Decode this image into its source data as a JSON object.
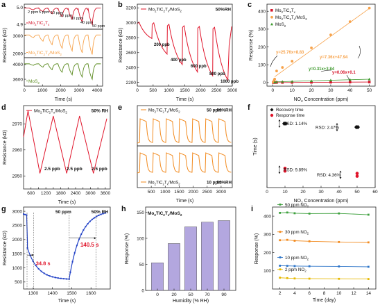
{
  "chart_data": [
    {
      "id": "a",
      "panel_label": "a",
      "type": "line",
      "xlabel": "Time (s)",
      "ylabel": "Resistance (kΩ)",
      "xlim": [
        0,
        4300
      ],
      "xticks": [
        "0",
        "1000",
        "2000",
        "3000",
        "4000"
      ],
      "subplots": [
        {
          "name": "Mo2TiC2Tx",
          "label_parts": {
            "main": "Mo",
            "s1": "2",
            "mid": "TiC",
            "s2": "2",
            "end": "T",
            "s3": "x"
          },
          "color": "#d6142a",
          "ylim": [
            4.88,
            5.01
          ],
          "yticks": [
            "5.0",
            "4.9"
          ],
          "ytick_values": [
            5.0,
            4.9
          ],
          "baseline": 4.995,
          "cycles": [
            [
              280,
              4.985
            ],
            [
              800,
              4.975
            ],
            [
              1300,
              4.962
            ],
            [
              1850,
              4.945
            ],
            [
              2400,
              4.93
            ],
            [
              2950,
              4.915
            ],
            [
              3500,
              4.9
            ]
          ],
          "annotations": [
            "2 ppm",
            "5 ppm",
            "10 ppm",
            "20 ppm",
            "30 ppm",
            "40 ppm",
            "50 ppm"
          ]
        },
        {
          "name": "Mo2TiC2Tx/MoS2",
          "label_parts": {
            "main": "Mo",
            "s1": "2",
            "mid": "TiC",
            "s2": "2",
            "end": "T",
            "s3": "x",
            "tail": "/MoS",
            "s4": "2"
          },
          "color": "#f7a24a",
          "ylim": [
            1850,
            3300
          ],
          "yticks": [
            "3000",
            "2000"
          ],
          "ytick_values": [
            3000,
            2000
          ],
          "baseline": 3050,
          "cycles": [
            [
              280,
              2900
            ],
            [
              800,
              2700
            ],
            [
              1300,
              2500
            ],
            [
              1850,
              2300
            ],
            [
              2400,
              2150
            ],
            [
              2950,
              2050
            ],
            [
              3500,
              1950
            ]
          ]
        },
        {
          "name": "MoS2",
          "label_parts": {
            "main": "MoS",
            "s1": "2"
          },
          "color": "#5a8a1e",
          "ylim": [
            3450,
            4150
          ],
          "yticks": [
            "4000",
            "3600"
          ],
          "ytick_values": [
            4000,
            3600
          ],
          "baseline": 4020,
          "cycles": [
            [
              280,
              3980
            ],
            [
              800,
              3930
            ],
            [
              1300,
              3860
            ],
            [
              1850,
              3790
            ],
            [
              2400,
              3720
            ],
            [
              2950,
              3660
            ],
            [
              3500,
              3600
            ]
          ]
        }
      ]
    },
    {
      "id": "b",
      "panel_label": "b",
      "type": "line",
      "xlabel": "Time (s)",
      "ylabel": "Resistance (kΩ)",
      "legend": {
        "main": "Mo",
        "s1": "2",
        "mid": "TiC",
        "s2": "2",
        "end": "T",
        "s3": "x",
        "tail": "/MoS",
        "s4": "2"
      },
      "condition": "50%RH",
      "color": "#e0142a",
      "xlim": [
        0,
        3000
      ],
      "xticks": [
        "0",
        "500",
        "1000",
        "1500",
        "2000",
        "2500",
        "3000"
      ],
      "ylim": [
        2150,
        3250
      ],
      "yticks": [
        "2200",
        "2400",
        "2600",
        "2800",
        "3000",
        "3200"
      ],
      "ytick_values": [
        2200,
        2400,
        2600,
        2800,
        3000,
        3200
      ],
      "cycles": [
        [
          0,
          3010,
          460,
          2790
        ],
        [
          470,
          3000,
          940,
          2580
        ],
        [
          950,
          2980,
          1420,
          2440
        ],
        [
          1430,
          2960,
          1900,
          2340
        ],
        [
          1910,
          2950,
          2380,
          2290
        ],
        [
          2390,
          2940,
          2860,
          2230
        ]
      ],
      "annotations": [
        "200 ppb",
        "400 ppb",
        "600 ppb",
        "800 ppb",
        "1000 ppb"
      ]
    },
    {
      "id": "c",
      "panel_label": "c",
      "type": "scatter",
      "xlabel": "NO2 Concentration (ppm)",
      "xlabel_parts": {
        "a": "NO",
        "s": "2",
        "b": " Concentration (ppm)"
      },
      "ylabel": "Response (%)",
      "xlim": [
        -3,
        53
      ],
      "xticks": [
        "0",
        "10",
        "20",
        "30",
        "40",
        "50"
      ],
      "xtick_values": [
        0,
        10,
        20,
        30,
        40,
        50
      ],
      "ylim": [
        -20,
        440
      ],
      "yticks": [
        "0",
        "100",
        "200",
        "300",
        "400"
      ],
      "ytick_values": [
        0,
        100,
        200,
        300,
        400
      ],
      "series": [
        {
          "name": "Mo2TiC2Tx",
          "label_parts": {
            "main": "Mo",
            "s1": "2",
            "mid": "TiC",
            "s2": "2",
            "end": "T",
            "s3": "x"
          },
          "color": "#d6142a",
          "x": [
            0.2,
            0.5,
            1,
            2,
            5,
            10,
            20,
            30,
            40,
            50
          ],
          "y": [
            0.1,
            0.1,
            0.2,
            0.3,
            0.5,
            0.7,
            1.3,
            1.9,
            2.5,
            3.1
          ]
        },
        {
          "name": "Mo2TiC2Tx/MoS2",
          "label_parts": {
            "main": "Mo",
            "s1": "2",
            "mid": "TiC",
            "s2": "2",
            "end": "T",
            "s3": "x",
            "tail": "/MoS",
            "s4": "2"
          },
          "color": "#f7a24a",
          "x": [
            0.2,
            0.4,
            0.6,
            0.8,
            1,
            2,
            5,
            10,
            20,
            30,
            40,
            50
          ],
          "y": [
            2,
            5,
            9,
            14,
            20,
            65,
            85,
            120,
            195,
            268,
            342,
            418
          ]
        },
        {
          "name": "MoS2",
          "label_parts": {
            "main": "MoS",
            "s1": "2"
          },
          "color": "#3e9a2e",
          "x": [
            1,
            2,
            5,
            10,
            20,
            30,
            40,
            50
          ],
          "y": [
            2,
            4,
            5,
            6,
            9,
            13,
            16,
            19
          ]
        }
      ],
      "fits": [
        {
          "text": "y=25.76x+8.83",
          "color": "#f7a24a"
        },
        {
          "text": "y=7.36x+47.94",
          "color": "#f7a24a"
        },
        {
          "text": "y=0.31x+3.84",
          "color": "#3e9a2e"
        },
        {
          "text": "y=0.06x+0.1",
          "color": "#d6142a"
        }
      ]
    },
    {
      "id": "d",
      "panel_label": "d",
      "type": "line",
      "xlabel": "Time (s)",
      "ylabel": "Resistance (kΩ)",
      "legend": {
        "main": "Mo",
        "s1": "2",
        "mid": "TiC",
        "s2": "2",
        "end": "T",
        "s3": "x",
        "tail": "/MoS",
        "s4": "2"
      },
      "condition": "50% RH",
      "color": "#e0142a",
      "xlim": [
        300,
        3800
      ],
      "xticks": [
        "600",
        "900",
        "1200",
        "1500",
        "1800",
        "2100",
        "2400",
        "2700",
        "3000",
        "3300",
        "3600"
      ],
      "xtick_values": [
        600,
        900,
        1200,
        1500,
        1800,
        2100,
        2400,
        2700,
        3000,
        3300,
        3600
      ],
      "ylim": [
        2945,
        2977
      ],
      "yticks": [
        "2950",
        "2960",
        "2970"
      ],
      "ytick_values": [
        2950,
        2960,
        2970
      ],
      "points": [
        [
          300,
          2965
        ],
        [
          480,
          2975
        ],
        [
          960,
          2951
        ],
        [
          1500,
          2973
        ],
        [
          2040,
          2951
        ],
        [
          2560,
          2973
        ],
        [
          3120,
          2951
        ],
        [
          3660,
          2972
        ]
      ],
      "annotations": [
        "2.5 ppb",
        "2.5 ppb",
        "2.5 ppb"
      ]
    },
    {
      "id": "e",
      "panel_label": "e",
      "type": "line",
      "xlabel": "Time (s)",
      "ylabel": "",
      "xlim": [
        0,
        3400
      ],
      "xticks": [
        "500",
        "1000",
        "1500",
        "2000",
        "2500",
        "3000"
      ],
      "xtick_values": [
        500,
        1000,
        1500,
        2000,
        2500,
        3000
      ],
      "subplots": [
        {
          "legend": {
            "main": "Mo",
            "s1": "2",
            "mid": "TiC",
            "s2": "2",
            "end": "T",
            "s3": "x",
            "tail": "/MoS",
            "s4": "2"
          },
          "conc": "50 ppm",
          "condition": "50%RH",
          "color": "#f28a1e",
          "cycles": 7
        },
        {
          "legend": {
            "main": "Mo",
            "s1": "2",
            "mid": "TiC",
            "s2": "2",
            "end": "T",
            "s3": "x",
            "tail": "/MoS",
            "s4": "2"
          },
          "conc": "10 ppm",
          "condition": "50%RH",
          "color": "#f28a1e",
          "cycles": 7
        }
      ]
    },
    {
      "id": "f",
      "panel_label": "f",
      "type": "scatter",
      "xlabel": "NO2 Concentration (ppm)",
      "xlabel_parts": {
        "a": "NO",
        "s": "2",
        "b": " Concentration (ppm)"
      },
      "ylabel": "Time (s)",
      "xlim": [
        0,
        60
      ],
      "xticks": [
        "0",
        "10",
        "20",
        "30",
        "40",
        "50",
        "60"
      ],
      "xtick_values": [
        0,
        10,
        20,
        30,
        40,
        50,
        60
      ],
      "series": [
        {
          "name": "Recovery time",
          "color": "#111111",
          "marker": "diamond",
          "points": [
            [
              10,
              125
            ],
            [
              50,
              118
            ]
          ]
        },
        {
          "name": "Response time",
          "color": "#e0142a",
          "marker": "circle",
          "points": [
            [
              10,
              35
            ],
            [
              50,
              25
            ]
          ]
        }
      ],
      "annotations": [
        "RSD: 1.14%",
        "RSD: 2.47%",
        "RSD: 9.89%",
        "RSD: 4.36%"
      ]
    },
    {
      "id": "g",
      "panel_label": "g",
      "type": "line",
      "xlabel": "Time (s)",
      "ylabel": "Resistance (kΩ)",
      "conc": "50 ppm",
      "condition": "50% RH",
      "color": "#1f3fc6",
      "xlim": [
        1250,
        1700
      ],
      "xticks": [
        "1300",
        "1400",
        "1500",
        "1600"
      ],
      "xtick_values": [
        1300,
        1400,
        1500,
        1600
      ],
      "ylim": [
        250,
        3150
      ],
      "yticks": [
        "500",
        "1000",
        "1500",
        "2000",
        "2500",
        "3000"
      ],
      "ytick_values": [
        500,
        1000,
        1500,
        2000,
        2500,
        3000
      ],
      "response_time": "34.8 s",
      "recovery_time": "140.5 s",
      "times": {
        "gas_on": 1268,
        "resp_end": 1303,
        "gas_off": 1487,
        "rec_end": 1627
      }
    },
    {
      "id": "h",
      "panel_label": "h",
      "type": "bar",
      "title": {
        "main": "Mo",
        "s1": "2",
        "mid": "TiC",
        "s2": "2",
        "end": "T",
        "s3": "x",
        "tail": "/MoS",
        "s4": "2"
      },
      "xlabel": "Humidity (% RH)",
      "ylabel": "Response (%)",
      "categories": [
        "0",
        "20",
        "50",
        "70",
        "90"
      ],
      "values": [
        53,
        90,
        122,
        131,
        134
      ],
      "ylim": [
        0,
        160
      ],
      "yticks": [
        "0",
        "50",
        "100",
        "150"
      ],
      "ytick_values": [
        0,
        50,
        100,
        150
      ],
      "color": "#b3a7df"
    },
    {
      "id": "i",
      "panel_label": "i",
      "type": "line",
      "xlabel": "Time (day)",
      "ylabel": "Response (%)",
      "xlim": [
        1,
        15
      ],
      "xticks": [
        "2",
        "4",
        "6",
        "8",
        "10",
        "12",
        "14"
      ],
      "xtick_values": [
        2,
        4,
        6,
        8,
        10,
        12,
        14
      ],
      "ylim": [
        0,
        450
      ],
      "yticks": [
        "100",
        "200",
        "300",
        "400"
      ],
      "ytick_values": [
        100,
        200,
        300,
        400
      ],
      "x": [
        2,
        3,
        4,
        6,
        10,
        14
      ],
      "series": [
        {
          "name": "50 ppm NO2",
          "label": "50 ppm NO",
          "sub": "2",
          "color": "#3ea03e",
          "values": [
            418,
            420,
            416,
            414,
            415,
            408
          ]
        },
        {
          "name": "30 ppm NO2",
          "label": "30 ppm NO",
          "sub": "2",
          "color": "#f28a1e",
          "values": [
            268,
            270,
            265,
            262,
            258,
            256
          ]
        },
        {
          "name": "10 ppm NO2",
          "label": "10 ppm NO",
          "sub": "2",
          "color": "#2c74c8",
          "values": [
            128,
            127,
            126,
            125,
            124,
            122
          ]
        },
        {
          "name": "2 ppm NO2",
          "label": "2 ppm NO",
          "sub": "2",
          "color": "#e6b800",
          "values": [
            62,
            60,
            58,
            57,
            56,
            55
          ]
        }
      ]
    }
  ]
}
